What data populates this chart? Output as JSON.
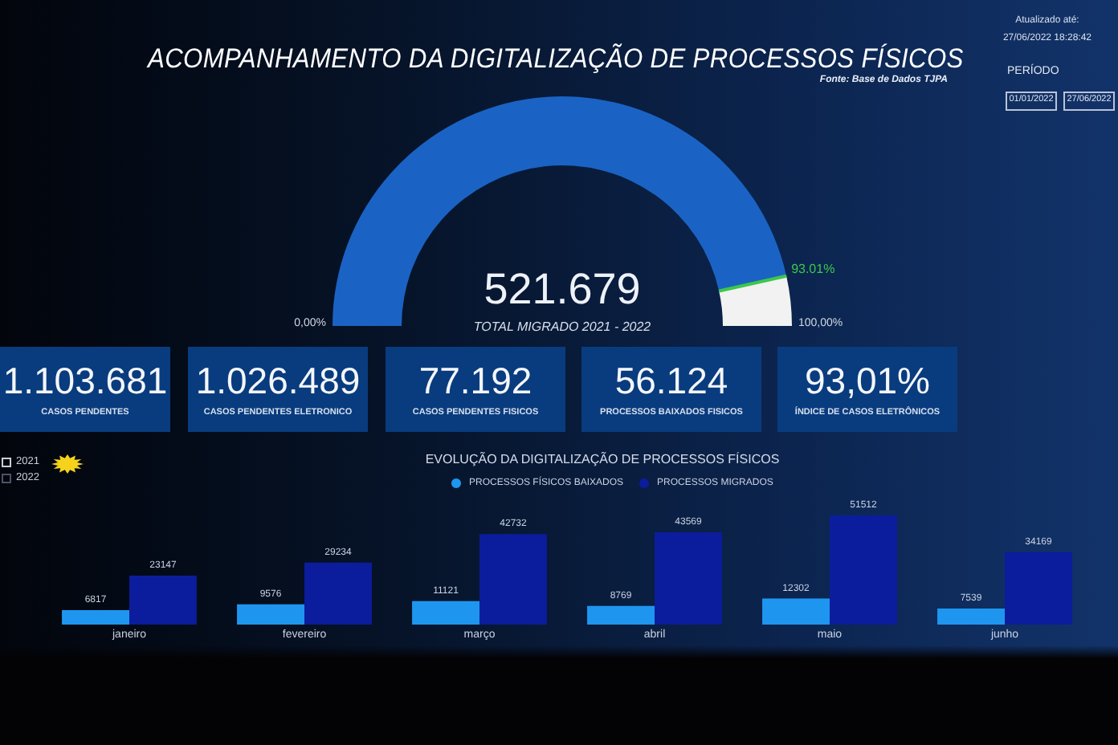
{
  "chart_data": [
    {
      "type": "other",
      "title": "ACOMPANHAMENTO DA DIGITALIZAÇÃO DE PROCESSOS FÍSICOS",
      "annotations": [
        "Fonte: Base de Dados TJPA",
        "Atualizado até:",
        "27/06/2022 18:28:42",
        "PERÍODO",
        "01/01/2022",
        "27/06/2022"
      ]
    },
    {
      "type": "donut",
      "categories": [
        null,
        null
      ],
      "values": [
        93.01,
        6.99
      ],
      "value_labels": [
        "93.01%",
        null
      ],
      "colors": [
        "#1a63c4",
        "#f2f2f2"
      ],
      "annotations": [
        "521.679",
        "TOTAL MIGRADO 2021 - 2022",
        "0,00%",
        "100,00%"
      ]
    },
    {
      "type": "other",
      "annotations": [
        "1.103.681",
        "CASOS PENDENTES",
        "1.026.489",
        "CASOS PENDENTES ELETRONICO",
        "77.192",
        "CASOS PENDENTES FISICOS",
        "56.124",
        "PROCESSOS BAIXADOS FISICOS",
        "93,01%",
        "ÍNDICE DE CASOS ELETRÔNICOS"
      ]
    },
    {
      "type": "other",
      "annotations": [
        "2021",
        "2022"
      ]
    },
    {
      "type": "bar",
      "title": "EVOLUÇÃO DA DIGITALIZAÇÃO DE PROCESSOS FÍSICOS",
      "categories": [
        "janeiro",
        "fevereiro",
        "março",
        "abril",
        "maio",
        "junho"
      ],
      "series": [
        {
          "name": "PROCESSOS FÍSICOS BAIXADOS",
          "color": "#1e96f0",
          "values": [
            6817,
            9576,
            11121,
            8769,
            12302,
            7539
          ]
        },
        {
          "name": "PROCESSOS MIGRADOS",
          "color": "#0b1d9c",
          "values": [
            23147,
            29234,
            42732,
            43569,
            51512,
            34169
          ]
        }
      ],
      "data_labels": true,
      "legend": "top",
      "tick_labels": "x"
    }
  ]
}
